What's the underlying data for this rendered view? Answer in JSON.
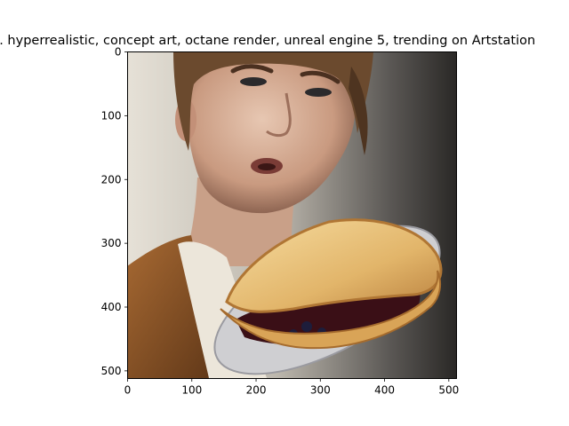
{
  "chart_data": {
    "type": "image",
    "title": "...  hyperrealistic, concept art, octane render, unreal engine 5, trending on Artstation",
    "xlim": [
      0,
      512
    ],
    "ylim": [
      512,
      0
    ],
    "x_ticks": [
      0,
      100,
      200,
      300,
      400,
      500
    ],
    "y_ticks": [
      0,
      100,
      200,
      300,
      400,
      500
    ],
    "image_description": "Hyperrealistic render of a young man with tousled brown hair holding a blueberry pie on a plate",
    "colors": {
      "background_light": "#d9d5cd",
      "background_dark": "#2a2826",
      "skin": "#d9b39c",
      "hair": "#6b4a2e",
      "jacket": "#8a5526",
      "shirt": "#ece6da",
      "pie_crust": "#e8c27a",
      "pie_filling": "#3a0f16",
      "plate": "#cfcfd2"
    }
  }
}
